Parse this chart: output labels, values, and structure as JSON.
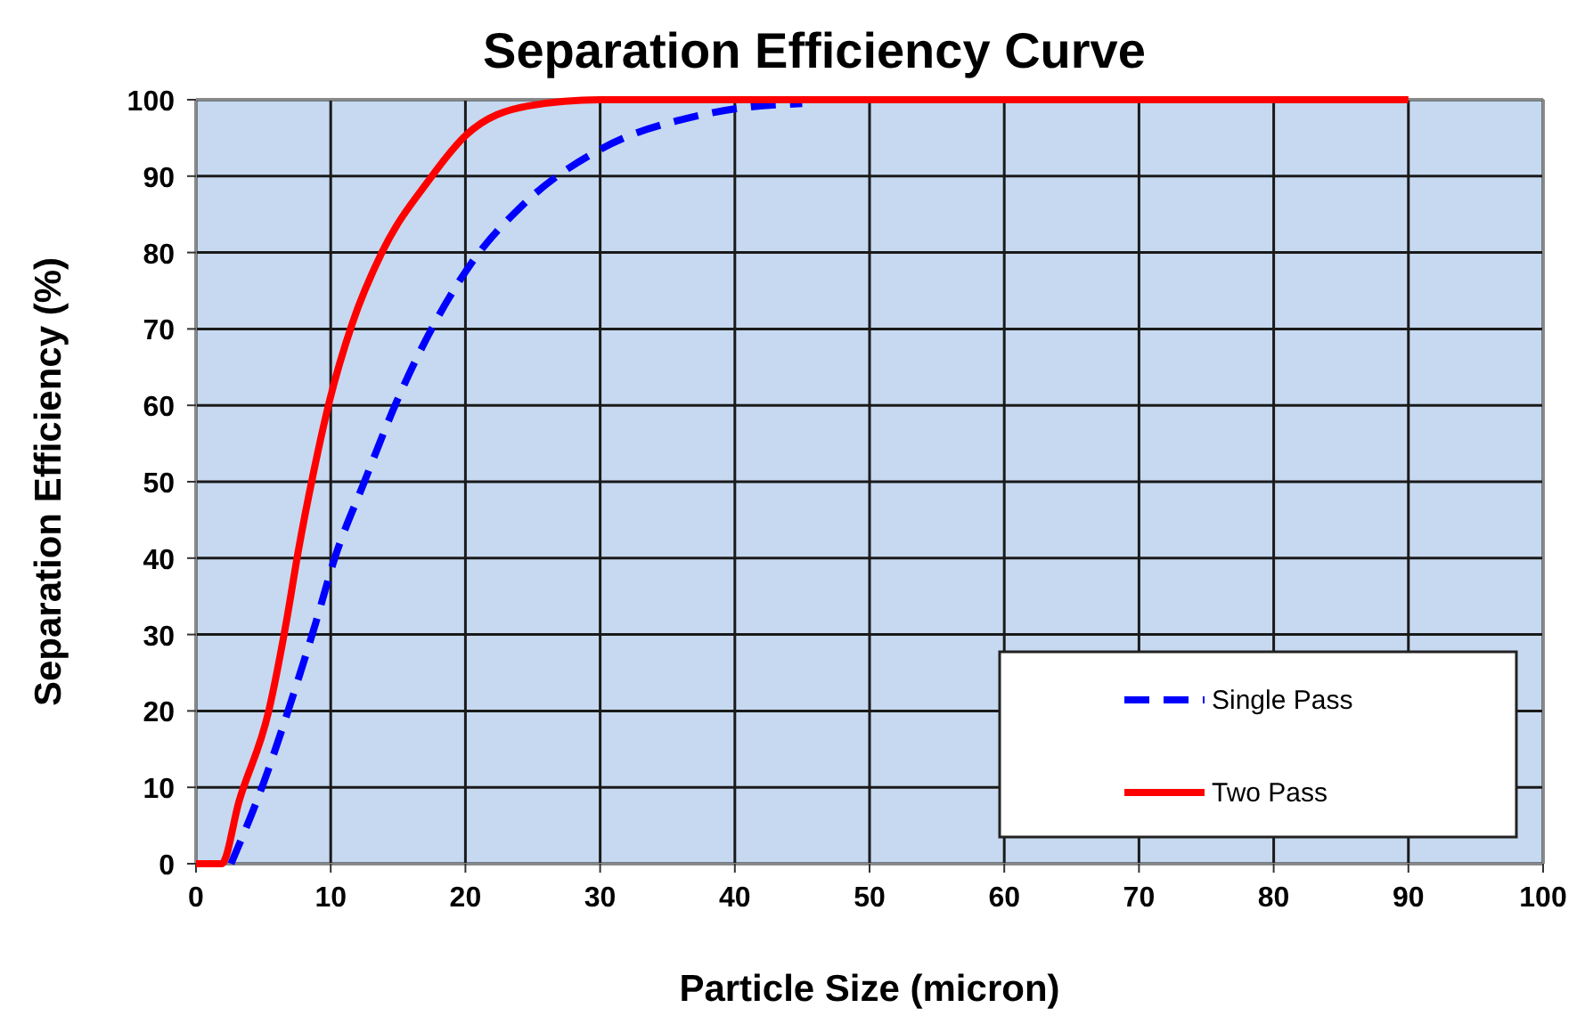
{
  "chart_data": {
    "type": "line",
    "title": "Separation Efficiency Curve",
    "xlabel": "Particle Size (micron)",
    "ylabel": "Separation Efficiency (%)",
    "xlim": [
      0,
      100
    ],
    "ylim": [
      0,
      100
    ],
    "xticks": [
      0,
      10,
      20,
      30,
      40,
      50,
      60,
      70,
      80,
      90,
      100
    ],
    "yticks": [
      0,
      10,
      20,
      30,
      40,
      50,
      60,
      70,
      80,
      90,
      100
    ],
    "grid": true,
    "legend": "bottom right",
    "series": [
      {
        "name": "Single Pass",
        "color": "#0000ff",
        "line_style": "dashed",
        "x": [
          2.6,
          5,
          7.2,
          8.9,
          10.3,
          12.5,
          14.9,
          17.7,
          20.4,
          24.3,
          30,
          37,
          40,
          45
        ],
        "values": [
          0,
          10.5,
          22,
          31.6,
          40,
          50,
          60.5,
          70.7,
          78.5,
          86.3,
          93.5,
          97.8,
          98.8,
          99.5
        ]
      },
      {
        "name": "Two Pass",
        "color": "#ff0000",
        "line_style": "solid",
        "x": [
          0,
          1.9,
          3.2,
          5.4,
          6.7,
          7.6,
          8.7,
          9.9,
          11.6,
          13.8,
          17.3,
          20,
          24.7,
          30,
          90
        ],
        "values": [
          0,
          0,
          8.2,
          20,
          31.6,
          41,
          51,
          60.5,
          70.7,
          80,
          89.5,
          95.3,
          99.2,
          100,
          100
        ]
      }
    ]
  }
}
